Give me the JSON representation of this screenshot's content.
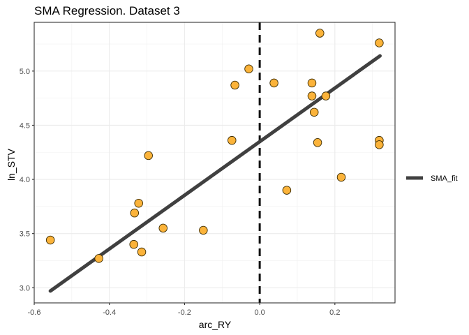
{
  "chart_data": {
    "type": "scatter",
    "title": "SMA Regression. Dataset 3",
    "xlabel": "arc_RY",
    "ylabel": "ln_STV",
    "xlim": [
      -0.6,
      0.36
    ],
    "ylim": [
      2.86,
      5.45
    ],
    "x_ticks": [
      -0.6,
      -0.4,
      -0.2,
      0.0,
      0.2
    ],
    "x_tick_labels": [
      "-0.6",
      "-0.4",
      "-0.2",
      "0.0",
      "0.2"
    ],
    "y_ticks": [
      3.0,
      3.5,
      4.0,
      4.5,
      5.0
    ],
    "y_tick_labels": [
      "3.0",
      "3.5",
      "4.0",
      "4.5",
      "5.0"
    ],
    "grid": true,
    "points": {
      "color": "#FBB33A",
      "x": [
        -0.557,
        -0.428,
        -0.333,
        -0.322,
        -0.335,
        -0.314,
        -0.296,
        -0.257,
        -0.15,
        -0.074,
        -0.066,
        -0.029,
        0.038,
        0.072,
        0.139,
        0.139,
        0.176,
        0.145,
        0.16,
        0.154,
        0.217,
        0.318,
        0.318,
        0.318
      ],
      "y": [
        3.44,
        3.27,
        3.69,
        3.78,
        3.4,
        3.33,
        4.22,
        3.55,
        3.53,
        4.36,
        4.87,
        5.02,
        4.89,
        3.9,
        4.89,
        4.77,
        4.77,
        4.62,
        5.35,
        4.34,
        4.02,
        5.26,
        4.36,
        4.32
      ]
    },
    "series": [
      {
        "name": "SMA_fit",
        "type": "line",
        "color": "#404040",
        "x": [
          -0.557,
          0.32
        ],
        "y": [
          2.97,
          5.14
        ]
      }
    ],
    "vline": {
      "x": 0.0,
      "style": "dashed",
      "color": "#111111"
    },
    "legend": {
      "position": "right",
      "entries": [
        "SMA_fit"
      ]
    }
  }
}
